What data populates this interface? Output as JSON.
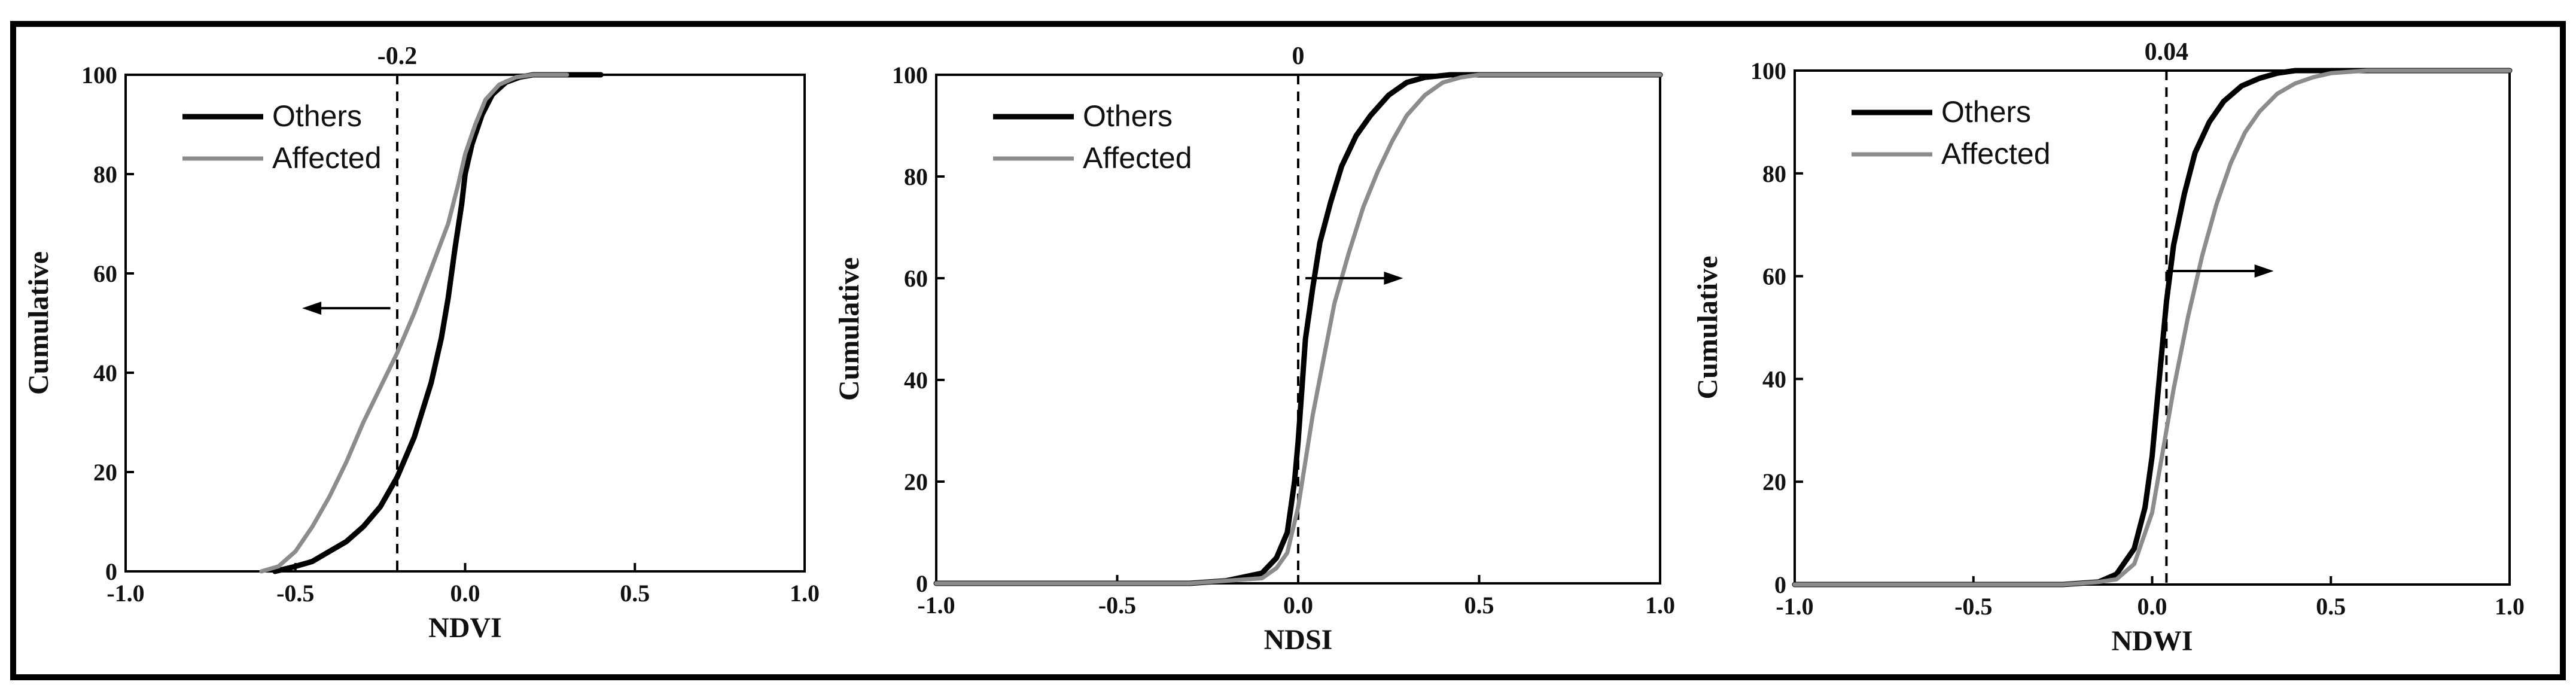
{
  "chart_data": [
    {
      "type": "line",
      "xlabel": "NDVI",
      "ylabel": "Cumulative",
      "xlim": [
        -1.0,
        1.0
      ],
      "ylim": [
        0,
        100
      ],
      "x_ticks": [
        "-1.0",
        "-0.5",
        "0.0",
        "0.5",
        "1.0"
      ],
      "y_ticks": [
        "0",
        "20",
        "40",
        "60",
        "80",
        "100"
      ],
      "threshold": {
        "value": -0.2,
        "label": "-0.2"
      },
      "arrow": {
        "direction": "left",
        "y": 53,
        "x_from": -0.22,
        "x_to": -0.48
      },
      "legend": {
        "position": "top-left",
        "entries": [
          "Others",
          "Affected"
        ]
      },
      "series": [
        {
          "name": "Others",
          "color": "#000000",
          "x": [
            -0.56,
            -0.5,
            -0.45,
            -0.4,
            -0.35,
            -0.3,
            -0.25,
            -0.2,
            -0.15,
            -0.1,
            -0.07,
            -0.05,
            -0.03,
            -0.01,
            0.0,
            0.02,
            0.05,
            0.08,
            0.12,
            0.16,
            0.2,
            0.25,
            0.3,
            0.4
          ],
          "y": [
            0,
            1,
            2,
            4,
            6,
            9,
            13,
            19,
            27,
            38,
            47,
            55,
            65,
            74,
            80,
            86,
            92,
            96,
            98.5,
            99.5,
            100,
            100,
            100,
            100
          ]
        },
        {
          "name": "Affected",
          "color": "#8c8c8c",
          "x": [
            -0.6,
            -0.55,
            -0.5,
            -0.45,
            -0.4,
            -0.35,
            -0.3,
            -0.25,
            -0.2,
            -0.15,
            -0.1,
            -0.05,
            -0.02,
            0.0,
            0.03,
            0.06,
            0.1,
            0.15,
            0.2,
            0.3
          ],
          "y": [
            0,
            1,
            4,
            9,
            15,
            22,
            30,
            37,
            44,
            52,
            61,
            70,
            78,
            84,
            90,
            95,
            98,
            99.5,
            100,
            100
          ]
        }
      ]
    },
    {
      "type": "line",
      "xlabel": "NDSI",
      "ylabel": "Cumulative",
      "xlim": [
        -1.0,
        1.0
      ],
      "ylim": [
        0,
        100
      ],
      "x_ticks": [
        "-1.0",
        "-0.5",
        "0.0",
        "0.5",
        "1.0"
      ],
      "y_ticks": [
        "0",
        "20",
        "40",
        "60",
        "80",
        "100"
      ],
      "threshold": {
        "value": 0,
        "label": "0"
      },
      "arrow": {
        "direction": "right",
        "y": 60,
        "x_from": 0.02,
        "x_to": 0.29
      },
      "legend": {
        "position": "top-left",
        "entries": [
          "Others",
          "Affected"
        ]
      },
      "series": [
        {
          "name": "Others",
          "color": "#000000",
          "x": [
            -1.0,
            -0.3,
            -0.2,
            -0.1,
            -0.06,
            -0.03,
            -0.01,
            0.0,
            0.01,
            0.02,
            0.04,
            0.06,
            0.09,
            0.12,
            0.16,
            0.2,
            0.25,
            0.3,
            0.35,
            0.42,
            0.5,
            1.0
          ],
          "y": [
            0,
            0,
            0.5,
            2,
            5,
            10,
            20,
            28,
            38,
            48,
            58,
            67,
            75,
            82,
            88,
            92,
            96,
            98.5,
            99.5,
            100,
            100,
            100
          ]
        },
        {
          "name": "Affected",
          "color": "#8c8c8c",
          "x": [
            -1.0,
            -0.3,
            -0.2,
            -0.1,
            -0.06,
            -0.03,
            0.0,
            0.02,
            0.04,
            0.07,
            0.1,
            0.14,
            0.18,
            0.22,
            0.26,
            0.3,
            0.35,
            0.4,
            0.45,
            0.5,
            1.0
          ],
          "y": [
            0,
            0,
            0.5,
            1,
            3,
            6,
            15,
            24,
            33,
            44,
            55,
            65,
            74,
            81,
            87,
            92,
            96,
            98.5,
            99.5,
            100,
            100
          ]
        }
      ]
    },
    {
      "type": "line",
      "xlabel": "NDWI",
      "ylabel": "Cumulative",
      "xlim": [
        -1.0,
        1.0
      ],
      "ylim": [
        0,
        100
      ],
      "x_ticks": [
        "-1.0",
        "-0.5",
        "0.0",
        "0.5",
        "1.0"
      ],
      "y_ticks": [
        "0",
        "20",
        "40",
        "60",
        "80",
        "100"
      ],
      "threshold": {
        "value": 0.04,
        "label": "0.04"
      },
      "arrow": {
        "direction": "right",
        "y": 61,
        "x_from": 0.04,
        "x_to": 0.34
      },
      "legend": {
        "position": "top-left",
        "entries": [
          "Others",
          "Affected"
        ]
      },
      "series": [
        {
          "name": "Others",
          "color": "#000000",
          "x": [
            -1.0,
            -0.25,
            -0.15,
            -0.1,
            -0.05,
            -0.02,
            0.0,
            0.02,
            0.04,
            0.06,
            0.09,
            0.12,
            0.16,
            0.2,
            0.25,
            0.3,
            0.35,
            0.4,
            0.5,
            1.0
          ],
          "y": [
            0,
            0,
            0.5,
            2,
            7,
            15,
            25,
            40,
            55,
            66,
            76,
            84,
            90,
            94,
            97,
            98.5,
            99.5,
            100,
            100,
            100
          ]
        },
        {
          "name": "Affected",
          "color": "#8c8c8c",
          "x": [
            -1.0,
            -0.25,
            -0.15,
            -0.1,
            -0.05,
            0.0,
            0.03,
            0.06,
            0.1,
            0.14,
            0.18,
            0.22,
            0.26,
            0.3,
            0.35,
            0.4,
            0.45,
            0.5,
            0.6,
            1.0
          ],
          "y": [
            0,
            0,
            0.5,
            1,
            4,
            14,
            26,
            38,
            52,
            64,
            74,
            82,
            88,
            92,
            95.5,
            97.5,
            98.7,
            99.5,
            100,
            100
          ]
        }
      ]
    }
  ]
}
